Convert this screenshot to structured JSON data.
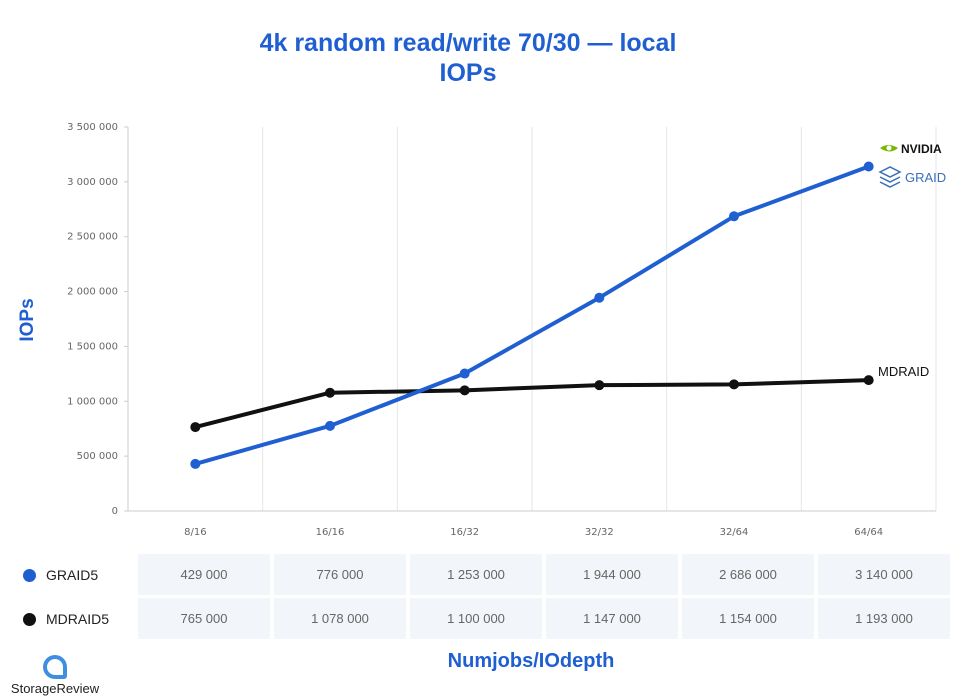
{
  "chart_data": {
    "type": "line",
    "title": "4k random read/write 70/30 — local",
    "subtitle": "IOPs",
    "ylabel": "IOPs",
    "xlabel": "Numjobs/IOdepth",
    "categories": [
      "8/16",
      "16/16",
      "16/32",
      "32/32",
      "32/64",
      "64/64"
    ],
    "ylim": [
      0,
      3500000
    ],
    "yticks": [
      "0",
      "500 000",
      "1 000 000",
      "1 500 000",
      "2 000 000",
      "2 500 000",
      "3 000 000",
      "3 500 000"
    ],
    "grid": "vertical",
    "series": [
      {
        "name": "GRAID5",
        "color": "#1f5fd1",
        "values": [
          429000,
          776000,
          1253000,
          1944000,
          2686000,
          3140000
        ],
        "table": [
          "429 000",
          "776 000",
          "1 253 000",
          "1 944 000",
          "2 686 000",
          "3 140 000"
        ]
      },
      {
        "name": "MDRAID5",
        "color": "#111111",
        "values": [
          765000,
          1078000,
          1100000,
          1147000,
          1154000,
          1193000
        ],
        "table": [
          "765 000",
          "1 078 000",
          "1 100 000",
          "1 147 000",
          "1 154 000",
          "1 193 000"
        ]
      }
    ],
    "annotations": {
      "graid_logo_nvidia": "NVIDIA",
      "graid_logo_graid": "GRAID",
      "mdraid_end": "MDRAID"
    }
  },
  "branding": {
    "site": "StorageReview",
    "icon": "storagereview-logo-icon"
  }
}
